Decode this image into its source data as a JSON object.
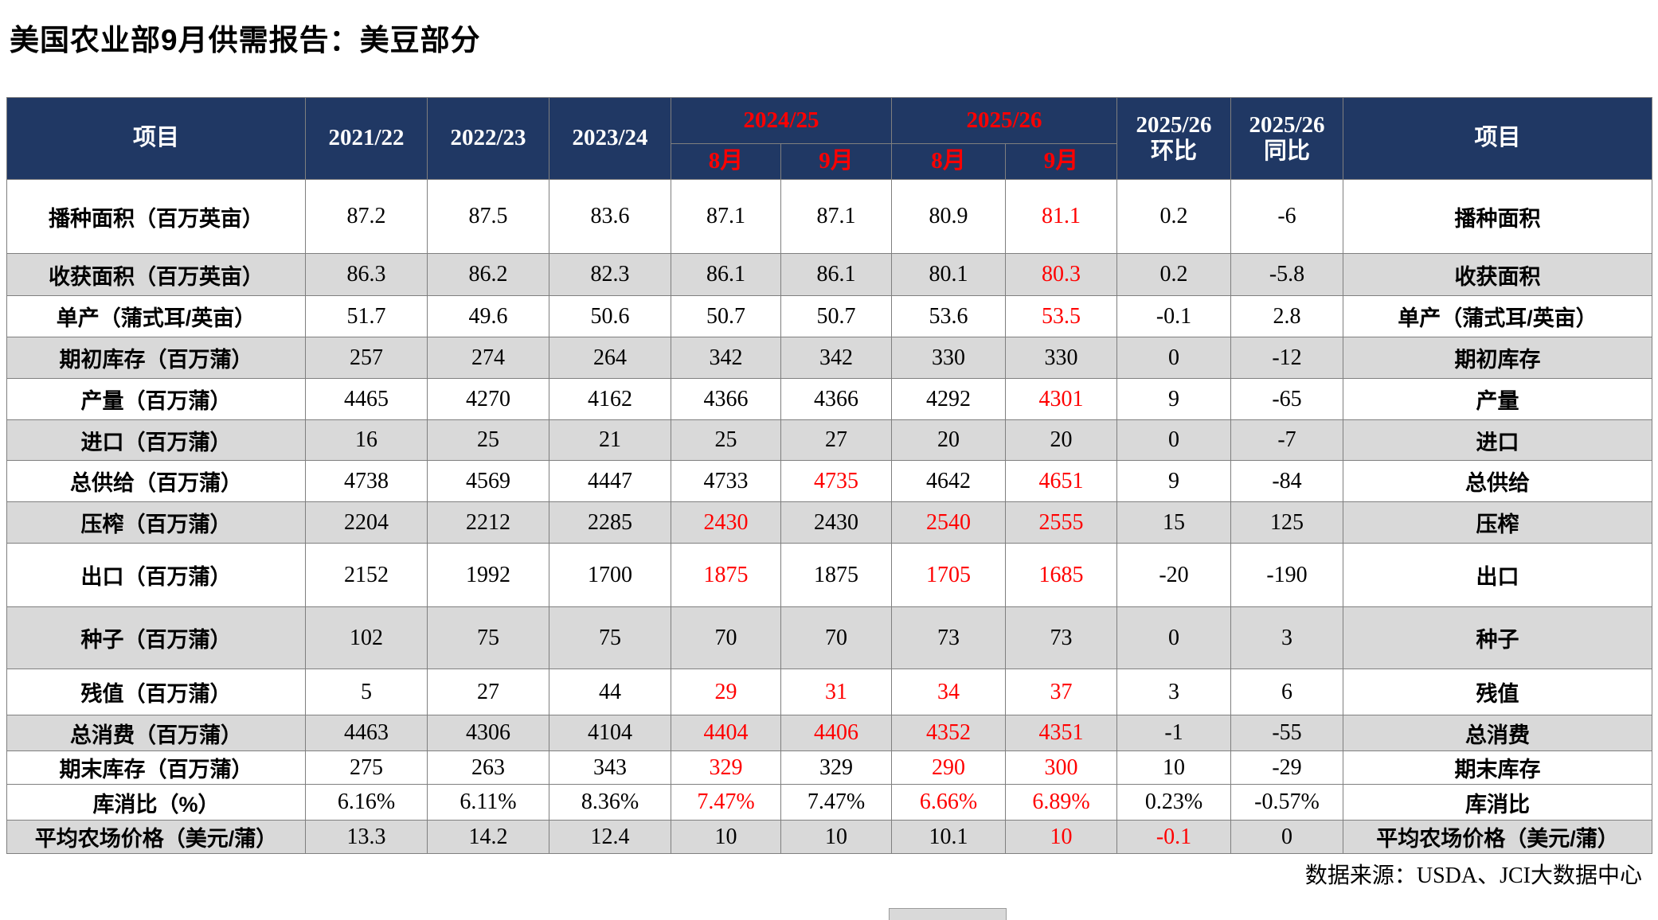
{
  "title": "美国农业部9月供需报告：美豆部分",
  "footer": {
    "source": "数据来源：USDA、JCI大数据中心"
  },
  "colors": {
    "header_bg": "#203864",
    "header_text": "#FFFFFF",
    "accent_red": "#FF0000",
    "row_shaded": "#D9D9D9",
    "grid_line": "#7F7F7F"
  },
  "table": {
    "header": {
      "item_left": "项目",
      "year_2021_22": "2021/22",
      "year_2022_23": "2022/23",
      "year_2023_24": "2023/24",
      "group_2024_25": "2024/25",
      "group_2025_26": "2025/26",
      "month_aug_2425": "8月",
      "month_sep_2425": "9月",
      "month_aug_2526": "8月",
      "month_sep_2526": "9月",
      "mom_line1": "2025/26",
      "mom_line2": "环比",
      "yoy_line1": "2025/26",
      "yoy_line2": "同比",
      "item_right": "项目"
    },
    "rows": [
      {
        "label": "播种面积（百万英亩）",
        "label_right": "播种面积",
        "values": [
          "87.2",
          "87.5",
          "83.6",
          "87.1",
          "87.1",
          "80.9",
          "81.1",
          "0.2",
          "-6"
        ],
        "red_cols": [
          6
        ],
        "shaded": false
      },
      {
        "label": "收获面积（百万英亩）",
        "label_right": "收获面积",
        "values": [
          "86.3",
          "86.2",
          "82.3",
          "86.1",
          "86.1",
          "80.1",
          "80.3",
          "0.2",
          "-5.8"
        ],
        "red_cols": [
          6
        ],
        "shaded": true
      },
      {
        "label": "单产（蒲式耳/英亩）",
        "label_right": "单产（蒲式耳/英亩）",
        "values": [
          "51.7",
          "49.6",
          "50.6",
          "50.7",
          "50.7",
          "53.6",
          "53.5",
          "-0.1",
          "2.8"
        ],
        "red_cols": [
          6
        ],
        "shaded": false
      },
      {
        "label": "期初库存（百万蒲）",
        "label_right": "期初库存",
        "values": [
          "257",
          "274",
          "264",
          "342",
          "342",
          "330",
          "330",
          "0",
          "-12"
        ],
        "red_cols": [],
        "shaded": true
      },
      {
        "label": "产量（百万蒲）",
        "label_right": "产量",
        "values": [
          "4465",
          "4270",
          "4162",
          "4366",
          "4366",
          "4292",
          "4301",
          "9",
          "-65"
        ],
        "red_cols": [
          6
        ],
        "shaded": false
      },
      {
        "label": "进口（百万蒲）",
        "label_right": "进口",
        "values": [
          "16",
          "25",
          "21",
          "25",
          "27",
          "20",
          "20",
          "0",
          "-7"
        ],
        "red_cols": [],
        "shaded": true
      },
      {
        "label": "总供给（百万蒲）",
        "label_right": "总供给",
        "values": [
          "4738",
          "4569",
          "4447",
          "4733",
          "4735",
          "4642",
          "4651",
          "9",
          "-84"
        ],
        "red_cols": [
          4,
          6
        ],
        "shaded": false
      },
      {
        "label": "压榨（百万蒲）",
        "label_right": "压榨",
        "values": [
          "2204",
          "2212",
          "2285",
          "2430",
          "2430",
          "2540",
          "2555",
          "15",
          "125"
        ],
        "red_cols": [
          3,
          5,
          6
        ],
        "shaded": true
      },
      {
        "label": "出口（百万蒲）",
        "label_right": "出口",
        "values": [
          "2152",
          "1992",
          "1700",
          "1875",
          "1875",
          "1705",
          "1685",
          "-20",
          "-190"
        ],
        "red_cols": [
          3,
          5,
          6
        ],
        "shaded": false
      },
      {
        "label": "种子（百万蒲）",
        "label_right": "种子",
        "values": [
          "102",
          "75",
          "75",
          "70",
          "70",
          "73",
          "73",
          "0",
          "3"
        ],
        "red_cols": [],
        "shaded": true
      },
      {
        "label": "残值（百万蒲）",
        "label_right": "残值",
        "values": [
          "5",
          "27",
          "44",
          "29",
          "31",
          "34",
          "37",
          "3",
          "6"
        ],
        "red_cols": [
          3,
          4,
          5,
          6
        ],
        "shaded": false
      },
      {
        "label": "总消费（百万蒲）",
        "label_right": "总消费",
        "values": [
          "4463",
          "4306",
          "4104",
          "4404",
          "4406",
          "4352",
          "4351",
          "-1",
          "-55"
        ],
        "red_cols": [
          3,
          4,
          5,
          6
        ],
        "shaded": true
      },
      {
        "label": "期末库存（百万蒲）",
        "label_right": "期末库存",
        "values": [
          "275",
          "263",
          "343",
          "329",
          "329",
          "290",
          "300",
          "10",
          "-29"
        ],
        "red_cols": [
          3,
          5,
          6
        ],
        "shaded": false
      },
      {
        "label": "库消比（%）",
        "label_right": "库消比",
        "values": [
          "6.16%",
          "6.11%",
          "8.36%",
          "7.47%",
          "7.47%",
          "6.66%",
          "6.89%",
          "0.23%",
          "-0.57%"
        ],
        "red_cols": [
          3,
          5,
          6
        ],
        "shaded": false
      },
      {
        "label": "平均农场价格（美元/蒲）",
        "label_right": "平均农场价格（美元/蒲）",
        "values": [
          "13.3",
          "14.2",
          "12.4",
          "10",
          "10",
          "10.1",
          "10",
          "-0.1",
          "0"
        ],
        "red_cols": [
          6,
          7
        ],
        "shaded": true
      }
    ]
  }
}
